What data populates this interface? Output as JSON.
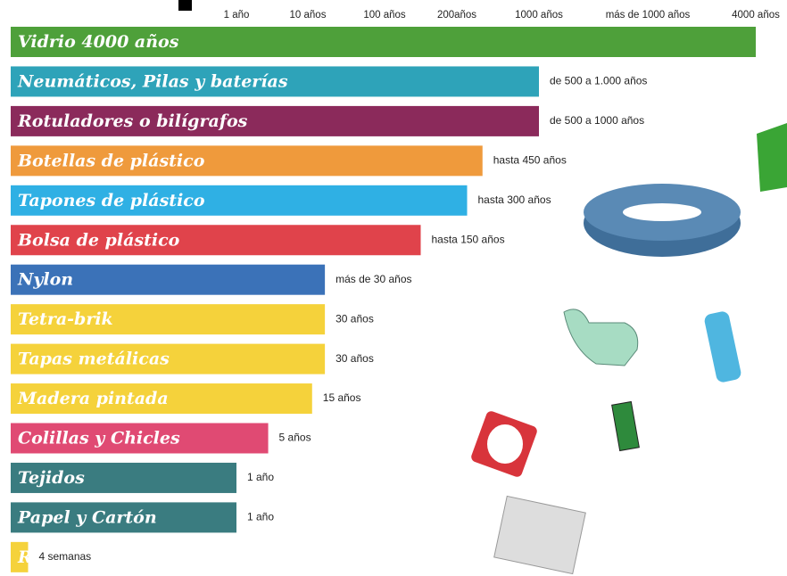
{
  "chart_data": {
    "type": "bar",
    "categories": [
      "Vidrio 4000 años",
      "Neumáticos, Pilas y baterías",
      "Rotuladores o bilígrafos",
      "Botellas de plástico",
      "Tapones de plástico",
      "Bolsa de plástico",
      "Nylon",
      "Tetra-brik",
      "Tapas metálicas",
      "Madera pintada",
      "Colillas y Chicles",
      "Tejidos",
      "Papel y Cartón",
      "Residuos orgánicos"
    ],
    "values": [
      4000,
      1000,
      1000,
      450,
      300,
      150,
      30,
      30,
      30,
      15,
      5,
      1,
      1,
      0.077
    ],
    "value_labels": [
      null,
      "de 500 a 1.000 años",
      "de 500 a 1000 años",
      "hasta 450 años",
      "hasta 300 años",
      "hasta 150 años",
      "más de 30 años",
      "30 años",
      "30 años",
      "15 años",
      "5 años",
      "1 año",
      "1 año",
      "4 semanas"
    ],
    "colors": [
      "#4ea03a",
      "#2ea3b9",
      "#8b2a5b",
      "#ef9a3c",
      "#2fb0e4",
      "#e0434b",
      "#3b72b8",
      "#f5d23b",
      "#f5d23b",
      "#f5d23b",
      "#e04a73",
      "#3a7c80",
      "#3a7c80",
      "#f5d23b"
    ],
    "xticks": [
      {
        "value": 1,
        "label": "1 año"
      },
      {
        "value": 10,
        "label": "10 años"
      },
      {
        "value": 100,
        "label": "100 años"
      },
      {
        "value": 200,
        "label": "200años"
      },
      {
        "value": 1000,
        "label": "1000 años"
      },
      {
        "value": 2000,
        "label": "más de 1000 años"
      },
      {
        "value": 4000,
        "label": "4000 años"
      }
    ]
  }
}
